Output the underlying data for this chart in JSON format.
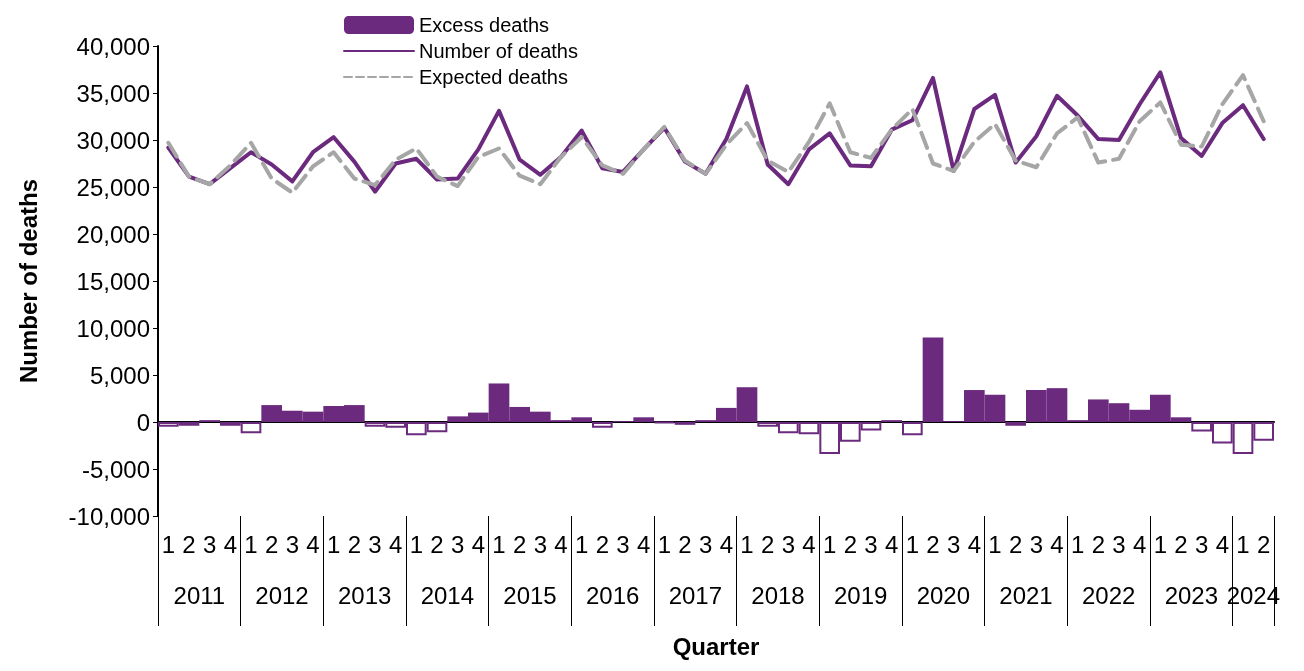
{
  "chart_data": {
    "type": "bar",
    "xlabel": "Quarter",
    "ylabel": "Number of deaths",
    "categories": [
      "1",
      "2",
      "3",
      "4",
      "1",
      "2",
      "3",
      "4",
      "1",
      "2",
      "3",
      "4",
      "1",
      "2",
      "3",
      "4",
      "1",
      "2",
      "3",
      "4",
      "1",
      "2",
      "3",
      "4",
      "1",
      "2",
      "3",
      "4",
      "1",
      "2",
      "3",
      "4",
      "1",
      "2",
      "3",
      "4",
      "1",
      "2",
      "3",
      "4",
      "1",
      "2",
      "3",
      "4",
      "1",
      "2",
      "3",
      "4",
      "1",
      "2",
      "3",
      "4",
      "1",
      "2"
    ],
    "annotations": [
      "2011",
      "2012",
      "2013",
      "2014",
      "2015",
      "2016",
      "2017",
      "2018",
      "2019",
      "2020",
      "2021",
      "2022",
      "2023",
      "2024"
    ],
    "series": [
      {
        "name": "Excess deaths",
        "color": "#6b2a7e",
        "values": [
          -500,
          -400,
          200,
          -400,
          -1200,
          1800,
          1200,
          1100,
          1700,
          1800,
          -500,
          -600,
          -1400,
          -1100,
          600,
          1000,
          4100,
          1600,
          1100,
          200,
          500,
          -600,
          100,
          500,
          -100,
          -300,
          200,
          1500,
          3700,
          -500,
          -1200,
          -1300,
          -3400,
          -2100,
          -900,
          200,
          -1400,
          9000,
          100,
          3400,
          2900,
          -400,
          3400,
          3600,
          200,
          2400,
          2000,
          1300,
          2900,
          500,
          -1000,
          -2300,
          -3400,
          -2000
        ]
      },
      {
        "name": "Number of deaths",
        "type": "line",
        "color": "#6b2a7e",
        "line_style": "solid",
        "values": [
          29200,
          26100,
          25300,
          27000,
          28700,
          27400,
          25600,
          28700,
          30300,
          27700,
          24500,
          27500,
          28000,
          25800,
          25900,
          29000,
          33100,
          27900,
          26300,
          28200,
          31000,
          27000,
          26600,
          29000,
          31300,
          27700,
          26400,
          30100,
          35700,
          27400,
          25300,
          29000,
          30700,
          27300,
          27200,
          31100,
          32100,
          36600,
          26700,
          33300,
          34800,
          27600,
          30400,
          34700,
          32600,
          30100,
          30000,
          33800,
          37200,
          30200,
          28300,
          31800,
          33700,
          30100
        ]
      },
      {
        "name": "Expected deaths",
        "type": "line",
        "color": "#a6a6a6",
        "line_style": "dashed",
        "values": [
          29700,
          26100,
          25300,
          27300,
          29700,
          25900,
          24400,
          27200,
          28700,
          25900,
          25200,
          27900,
          29100,
          26100,
          25100,
          28200,
          29100,
          26200,
          25300,
          28200,
          30300,
          27300,
          26400,
          29000,
          31400,
          27800,
          26400,
          29500,
          31800,
          27800,
          26600,
          29800,
          33900,
          28700,
          28100,
          31100,
          33300,
          27500,
          26700,
          29800,
          31700,
          27800,
          27100,
          30700,
          32400,
          27600,
          28000,
          32000,
          34000,
          29500,
          29300,
          33800,
          36900,
          32000
        ]
      }
    ],
    "ylim": [
      -10000,
      40000
    ],
    "yticks": [
      {
        "value": -10000,
        "label": "-10,000"
      },
      {
        "value": -5000,
        "label": "-5,000"
      },
      0,
      {
        "value": 5000,
        "label": "5,000"
      },
      {
        "value": 10000,
        "label": "10,000"
      },
      {
        "value": 15000,
        "label": "15,000"
      },
      {
        "value": 20000,
        "label": "20,000"
      },
      {
        "value": 25000,
        "label": "25,000"
      },
      {
        "value": 30000,
        "label": "30,000"
      },
      {
        "value": 35000,
        "label": "35,000"
      },
      {
        "value": 40000,
        "label": "40,000"
      }
    ],
    "legend": "top",
    "marker": "none"
  }
}
